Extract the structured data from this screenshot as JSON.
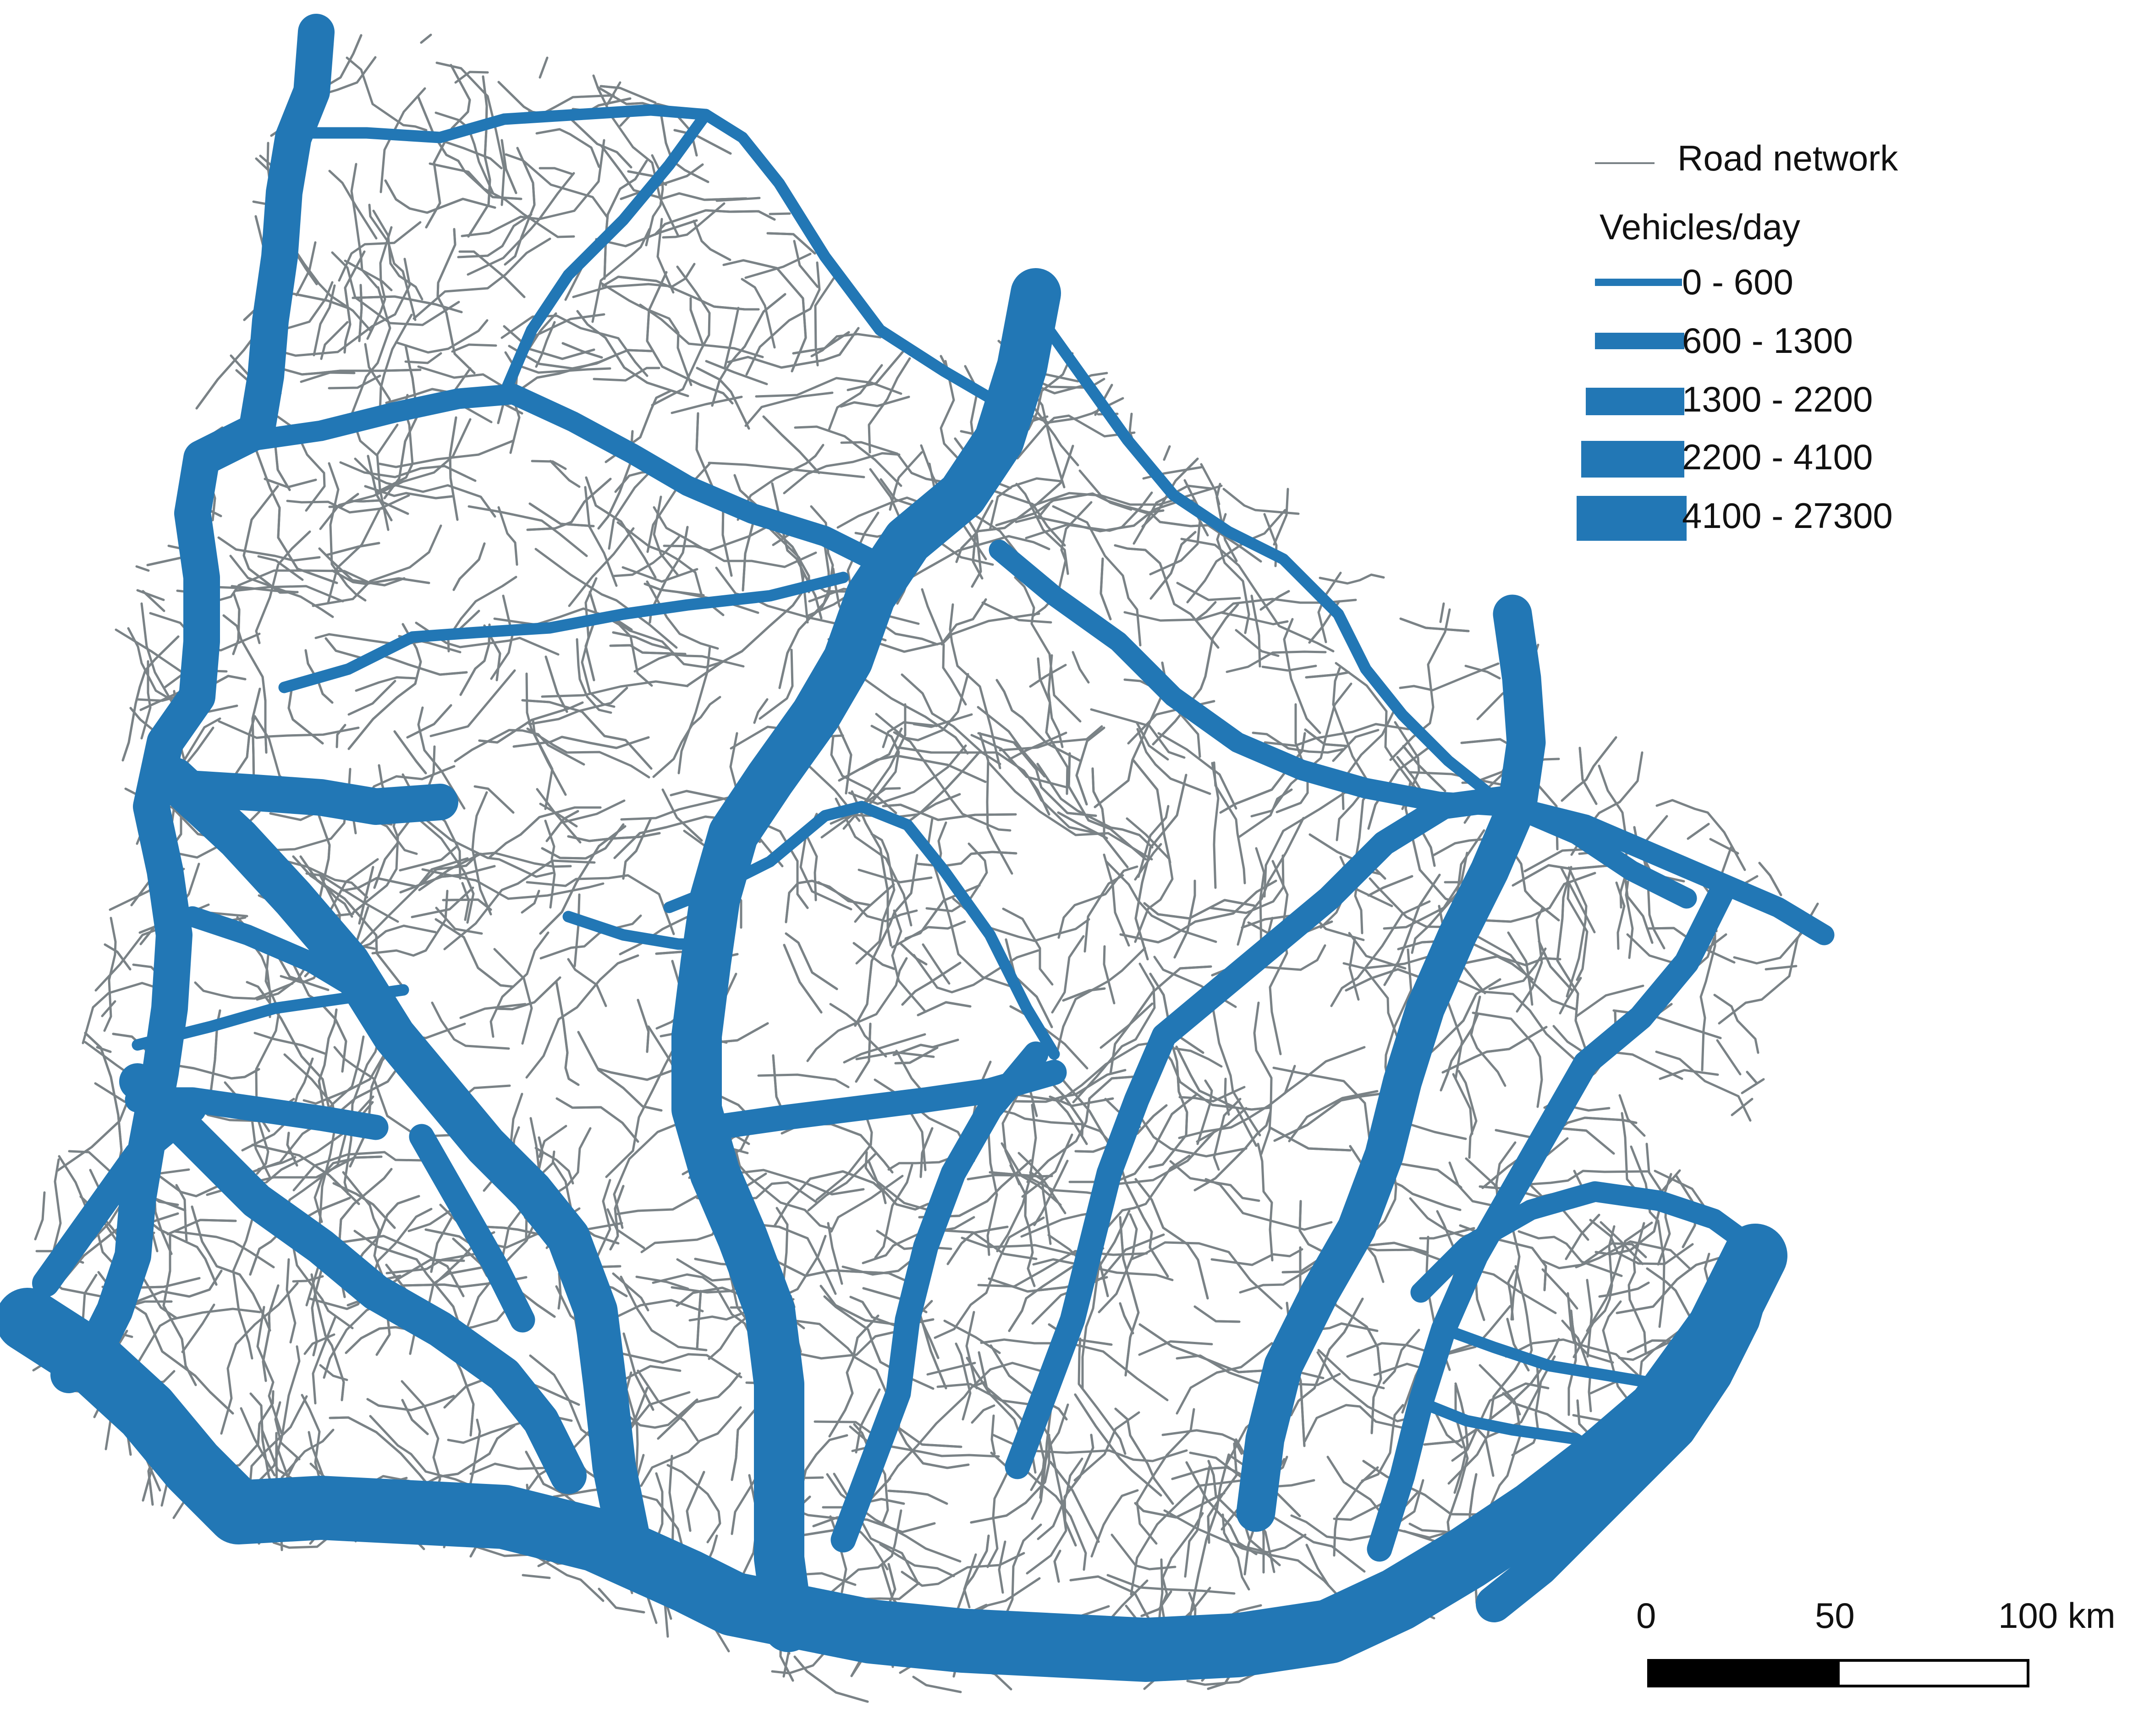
{
  "colors": {
    "flow": "#2277b5",
    "road": "#7a8286",
    "background": "#ffffff",
    "text": "#111111"
  },
  "legend": {
    "road_label": "Road network",
    "vehicles_title": "Vehicles/day",
    "classes": [
      {
        "label": "0 - 600"
      },
      {
        "label": "600 - 1300"
      },
      {
        "label": "1300 - 2200"
      },
      {
        "label": "2200 - 4100"
      },
      {
        "label": "4100 - 27300"
      }
    ]
  },
  "scale": {
    "labels": [
      "0",
      "50",
      "100 km"
    ]
  }
}
